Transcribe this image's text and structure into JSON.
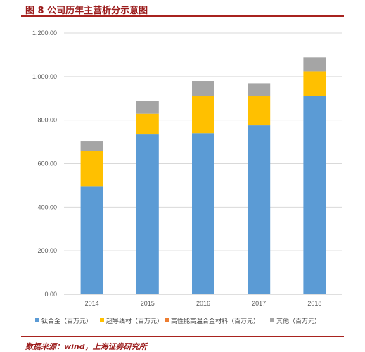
{
  "figure": {
    "title": "图 8 公司历年主营析分示意图",
    "source": "数据来源：wind，上海证券研究所"
  },
  "chart_data": {
    "type": "bar",
    "stacked": true,
    "categories": [
      "2014",
      "2015",
      "2016",
      "2017",
      "2018"
    ],
    "series": [
      {
        "name": "钛合金（百万元）",
        "color": "#5b9bd5",
        "values": [
          497,
          734,
          740,
          776,
          912
        ]
      },
      {
        "name": "超导线材（百万元）",
        "color": "#ffc000",
        "values": [
          160,
          95,
          172,
          135,
          112
        ]
      },
      {
        "name": "高性能高温合金材料（百万元）",
        "color": "#ed7d31",
        "values": [
          0,
          0,
          0,
          0,
          0
        ]
      },
      {
        "name": "其他（百万元）",
        "color": "#a5a5a5",
        "values": [
          48,
          60,
          68,
          58,
          65
        ]
      }
    ],
    "y_ticks": [
      "0.00",
      "200.00",
      "400.00",
      "600.00",
      "800.00",
      "1,000.00",
      "1,200.00"
    ],
    "ylim": [
      0,
      1200
    ],
    "grid": true,
    "legend_position": "bottom",
    "xlabel": "",
    "ylabel": ""
  }
}
